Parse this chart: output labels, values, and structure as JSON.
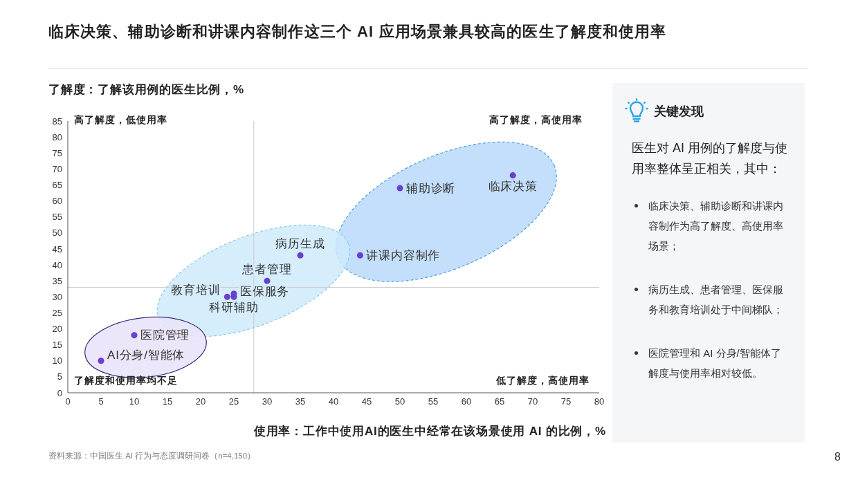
{
  "chart_data": [
    {
      "type": "scatter",
      "title": "临床决策、辅助诊断和讲课内容制作这三个 AI 应用场景兼具较高的医生了解度和使用率",
      "xlabel": "使用率：工作中使用AI的医生中经常在该场景使用 AI 的比例，%",
      "ylabel": "了解度：了解该用例的医生比例，%",
      "series": [
        {
          "color": "#6a3fd0",
          "x": [
            67,
            50,
            44
          ],
          "values": [
            68,
            64,
            43
          ]
        },
        {
          "color": "#6a3fd0",
          "x": [
            35,
            30,
            25,
            24,
            25
          ],
          "values": [
            43,
            35,
            31,
            30,
            30
          ]
        },
        {
          "color": "#6a3fd0",
          "x": [
            10,
            5
          ],
          "values": [
            18,
            10
          ]
        }
      ],
      "xlim": [
        0,
        80
      ],
      "xticks": [
        0,
        5,
        10,
        15,
        20,
        25,
        30,
        35,
        40,
        45,
        50,
        55,
        60,
        65,
        70,
        75,
        80
      ],
      "ylim": [
        0,
        85
      ],
      "yticks": [
        0,
        5,
        10,
        15,
        20,
        25,
        30,
        35,
        40,
        45,
        50,
        55,
        60,
        65,
        70,
        75,
        80,
        85
      ],
      "marker": "circle",
      "ref_lines": [
        {
          "axis": "x",
          "value": 28,
          "color": "#c8c8c8"
        },
        {
          "axis": "y",
          "value": 33,
          "color": "#c8c8c8"
        }
      ],
      "annotations": [
        "高了解度，低使用率",
        "高了解度，高使用率",
        "了解度和使用率均不足",
        "低了解度，高使用率",
        {
          "text": "临床决策",
          "x": 67,
          "y": 68
        },
        {
          "text": "辅助诊断",
          "x": 50,
          "y": 64
        },
        {
          "text": "讲课内容制作",
          "x": 44,
          "y": 43
        },
        {
          "text": "病历生成",
          "x": 35,
          "y": 43
        },
        {
          "text": "患者管理",
          "x": 30,
          "y": 35
        },
        {
          "text": "医保服务",
          "x": 25,
          "y": 31
        },
        {
          "text": "教育培训",
          "x": 24,
          "y": 30
        },
        {
          "text": "科研辅助",
          "x": 25,
          "y": 30
        },
        {
          "text": "医院管理",
          "x": 10,
          "y": 18
        },
        {
          "text": "AI分身/智能体",
          "x": 5,
          "y": 10
        },
        "资料来源：中国医生 AI 行为与态度调研问卷（n=4,150）",
        "8"
      ]
    },
    {
      "type": "other",
      "title": "关键发现",
      "annotations": [
        "医生对 AI 用例的了解度与使用率整体呈正相关，其中：",
        "临床决策、辅助诊断和讲课内容制作为高了解度、高使用率场景；",
        "病历生成、患者管理、医保服务和教育培训处于中间梯队；",
        "医院管理和 AI 分身/智能体了解度与使用率相对较低。"
      ]
    }
  ]
}
